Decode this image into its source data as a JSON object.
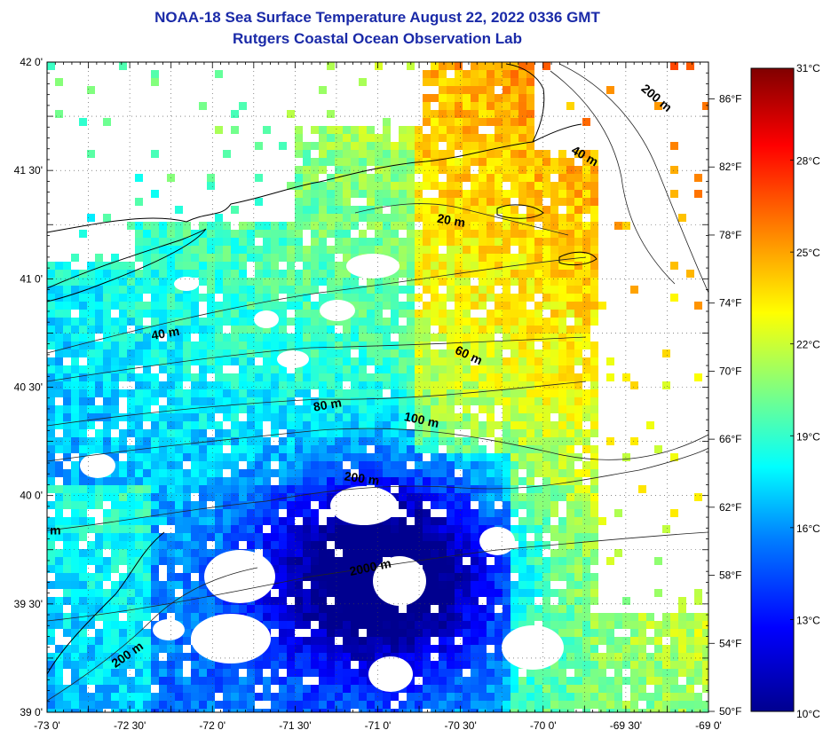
{
  "header": {
    "title": "NOAA-18 Sea Surface Temperature August 22, 2022 0336 GMT",
    "subtitle": "Rutgers Coastal Ocean Observation Lab"
  },
  "map": {
    "lon_range": [
      -73.0,
      -69.0
    ],
    "lat_range": [
      39.0,
      42.0
    ],
    "lat_ticks": [
      {
        "value": 42.0,
        "label": "42 0'"
      },
      {
        "value": 41.5,
        "label": "41 30'"
      },
      {
        "value": 41.0,
        "label": "41 0'"
      },
      {
        "value": 40.5,
        "label": "40 30'"
      },
      {
        "value": 40.0,
        "label": "40 0'"
      },
      {
        "value": 39.5,
        "label": "39 30'"
      },
      {
        "value": 39.0,
        "label": "39 0'"
      }
    ],
    "lon_ticks": [
      {
        "value": -73.0,
        "label": "-73 0'"
      },
      {
        "value": -72.5,
        "label": "-72 30'"
      },
      {
        "value": -72.0,
        "label": "-72 0'"
      },
      {
        "value": -71.5,
        "label": "-71 30'"
      },
      {
        "value": -71.0,
        "label": "-71 0'"
      },
      {
        "value": -70.5,
        "label": "-70 30'"
      },
      {
        "value": -70.0,
        "label": "-70 0'"
      },
      {
        "value": -69.5,
        "label": "-69 30'"
      },
      {
        "value": -69.0,
        "label": "-69 0'"
      }
    ],
    "grid": true,
    "depth_labels": [
      {
        "text": "200 m",
        "lon": -69.33,
        "lat": 41.82,
        "angle": 40
      },
      {
        "text": "40 m",
        "lon": -69.76,
        "lat": 41.55,
        "angle": 30
      },
      {
        "text": "20 m",
        "lon": -70.56,
        "lat": 41.25,
        "angle": 10
      },
      {
        "text": "40 m",
        "lon": -72.28,
        "lat": 40.73,
        "angle": -10
      },
      {
        "text": "60 m",
        "lon": -70.46,
        "lat": 40.63,
        "angle": 25
      },
      {
        "text": "80 m",
        "lon": -71.3,
        "lat": 40.4,
        "angle": -10
      },
      {
        "text": "100 m",
        "lon": -70.74,
        "lat": 40.33,
        "angle": 12
      },
      {
        "text": "200 m",
        "lon": -71.1,
        "lat": 40.06,
        "angle": 8
      },
      {
        "text": "2000 m",
        "lon": -71.04,
        "lat": 39.65,
        "angle": -12
      },
      {
        "text": "200 m",
        "lon": -72.5,
        "lat": 39.25,
        "angle": -35
      },
      {
        "text": "m",
        "lon": -72.95,
        "lat": 39.82,
        "angle": 0
      }
    ]
  },
  "colorbar": {
    "celsius_min": 10,
    "celsius_max": 31,
    "celsius_ticks": [
      {
        "value": 31,
        "label": "31°C"
      },
      {
        "value": 28,
        "label": "28°C"
      },
      {
        "value": 25,
        "label": "25°C"
      },
      {
        "value": 22,
        "label": "22°C"
      },
      {
        "value": 19,
        "label": "19°C"
      },
      {
        "value": 16,
        "label": "16°C"
      },
      {
        "value": 13,
        "label": "13°C"
      },
      {
        "value": 10,
        "label": "10°C"
      }
    ],
    "fahrenheit_ticks": [
      {
        "value": 86,
        "label": "86°F"
      },
      {
        "value": 82,
        "label": "82°F"
      },
      {
        "value": 78,
        "label": "78°F"
      },
      {
        "value": 74,
        "label": "74°F"
      },
      {
        "value": 70,
        "label": "70°F"
      },
      {
        "value": 66,
        "label": "66°F"
      },
      {
        "value": 62,
        "label": "62°F"
      },
      {
        "value": 58,
        "label": "58°F"
      },
      {
        "value": 54,
        "label": "54°F"
      },
      {
        "value": 50,
        "label": "50°F"
      }
    ]
  }
}
